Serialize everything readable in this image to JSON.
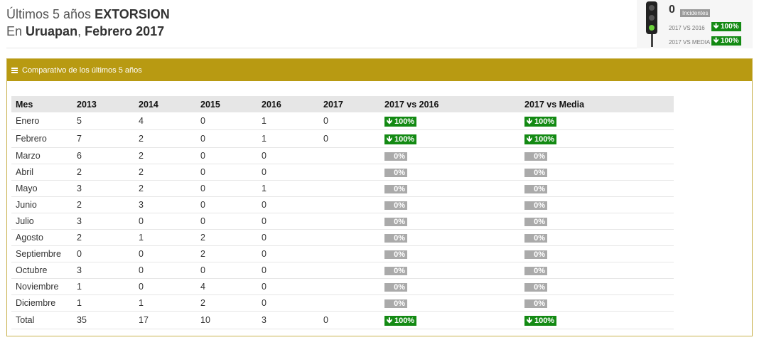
{
  "header": {
    "line1_prefix": "Últimos 5 años",
    "line1_bold": "EXTORSION",
    "line2_prefix": "En",
    "line2_city": "Uruapan",
    "line2_sep": ",",
    "line2_period": "Febrero 2017"
  },
  "indicator": {
    "count": "0",
    "count_label": "Incidentes",
    "row1_label": "2017 VS 2016",
    "row1_value": "🡻 100%",
    "row2_label": "2017 VS MEDIA",
    "row2_value": "🡻 100%",
    "status_color": "#6ad13a"
  },
  "panel": {
    "title": "Comparativo de los últimos 5 años",
    "accent_color": "#b89a12"
  },
  "table": {
    "headers": [
      "Mes",
      "2013",
      "2014",
      "2015",
      "2016",
      "2017",
      "2017 vs 2016",
      "2017 vs Media"
    ],
    "rows": [
      {
        "mes": "Enero",
        "y2013": "5",
        "y2014": "4",
        "y2015": "0",
        "y2016": "1",
        "y2017": "0",
        "vs2016": "🡻 100%",
        "vsmedia": "🡻 100%",
        "type": "green"
      },
      {
        "mes": "Febrero",
        "y2013": "7",
        "y2014": "2",
        "y2015": "0",
        "y2016": "1",
        "y2017": "0",
        "vs2016": "🡻 100%",
        "vsmedia": "🡻 100%",
        "type": "green"
      },
      {
        "mes": "Marzo",
        "y2013": "6",
        "y2014": "2",
        "y2015": "0",
        "y2016": "0",
        "y2017": "",
        "vs2016": "0%",
        "vsmedia": "0%",
        "type": "gray"
      },
      {
        "mes": "Abril",
        "y2013": "2",
        "y2014": "2",
        "y2015": "0",
        "y2016": "0",
        "y2017": "",
        "vs2016": "0%",
        "vsmedia": "0%",
        "type": "gray"
      },
      {
        "mes": "Mayo",
        "y2013": "3",
        "y2014": "2",
        "y2015": "0",
        "y2016": "1",
        "y2017": "",
        "vs2016": "0%",
        "vsmedia": "0%",
        "type": "gray"
      },
      {
        "mes": "Junio",
        "y2013": "2",
        "y2014": "3",
        "y2015": "0",
        "y2016": "0",
        "y2017": "",
        "vs2016": "0%",
        "vsmedia": "0%",
        "type": "gray"
      },
      {
        "mes": "Julio",
        "y2013": "3",
        "y2014": "0",
        "y2015": "0",
        "y2016": "0",
        "y2017": "",
        "vs2016": "0%",
        "vsmedia": "0%",
        "type": "gray"
      },
      {
        "mes": "Agosto",
        "y2013": "2",
        "y2014": "1",
        "y2015": "2",
        "y2016": "0",
        "y2017": "",
        "vs2016": "0%",
        "vsmedia": "0%",
        "type": "gray"
      },
      {
        "mes": "Septiembre",
        "y2013": "0",
        "y2014": "0",
        "y2015": "2",
        "y2016": "0",
        "y2017": "",
        "vs2016": "0%",
        "vsmedia": "0%",
        "type": "gray"
      },
      {
        "mes": "Octubre",
        "y2013": "3",
        "y2014": "0",
        "y2015": "0",
        "y2016": "0",
        "y2017": "",
        "vs2016": "0%",
        "vsmedia": "0%",
        "type": "gray"
      },
      {
        "mes": "Noviembre",
        "y2013": "1",
        "y2014": "0",
        "y2015": "4",
        "y2016": "0",
        "y2017": "",
        "vs2016": "0%",
        "vsmedia": "0%",
        "type": "gray"
      },
      {
        "mes": "Diciembre",
        "y2013": "1",
        "y2014": "1",
        "y2015": "2",
        "y2016": "0",
        "y2017": "",
        "vs2016": "0%",
        "vsmedia": "0%",
        "type": "gray"
      },
      {
        "mes": "Total",
        "y2013": "35",
        "y2014": "17",
        "y2015": "10",
        "y2016": "3",
        "y2017": "0",
        "vs2016": "🡻 100%",
        "vsmedia": "🡻 100%",
        "type": "green"
      }
    ]
  }
}
